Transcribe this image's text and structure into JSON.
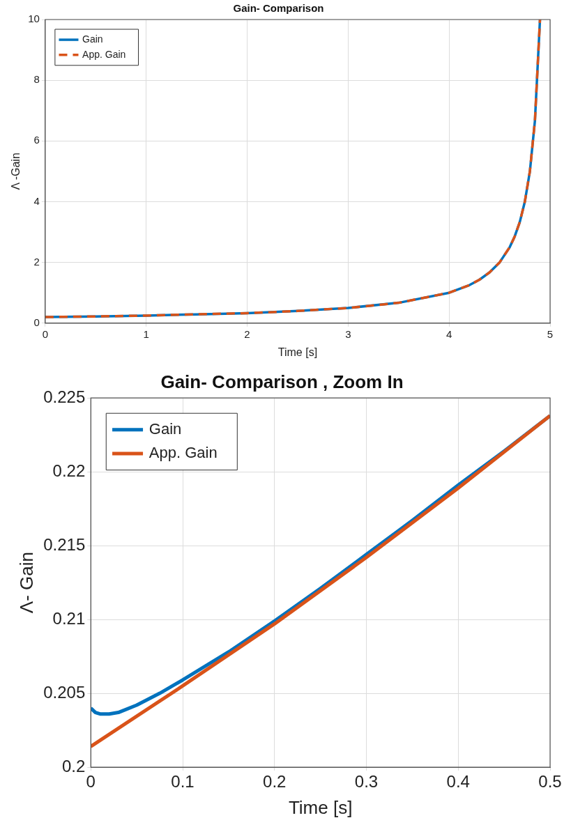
{
  "chart_data": [
    {
      "type": "line",
      "title": "Gain- Comparison",
      "xlabel": "Time [s]",
      "ylabel": "Λ -Gain",
      "xlim": [
        0,
        5
      ],
      "xticks": [
        0,
        1,
        2,
        3,
        4,
        5
      ],
      "ylim": [
        0,
        10
      ],
      "yticks": [
        0,
        2,
        4,
        6,
        8,
        10
      ],
      "grid": true,
      "legend": "top left",
      "series": [
        {
          "name": "Gain",
          "color": "#0072bd",
          "line_style": "solid",
          "x": [
            0,
            0.5,
            1,
            1.5,
            2,
            2.5,
            3,
            3.5,
            4,
            4.2,
            4.3,
            4.4,
            4.5,
            4.6,
            4.65,
            4.7,
            4.75,
            4.8,
            4.85,
            4.9
          ],
          "values": [
            0.2,
            0.22,
            0.25,
            0.29,
            0.33,
            0.4,
            0.5,
            0.67,
            1.0,
            1.25,
            1.43,
            1.67,
            2.0,
            2.5,
            2.86,
            3.33,
            4.0,
            5.0,
            6.67,
            10
          ]
        },
        {
          "name": "App. Gain",
          "color": "#d95319",
          "line_style": "dashed",
          "x": [
            0,
            0.5,
            1,
            1.5,
            2,
            2.5,
            3,
            3.5,
            4,
            4.2,
            4.3,
            4.4,
            4.5,
            4.6,
            4.65,
            4.7,
            4.75,
            4.8,
            4.85,
            4.9
          ],
          "values": [
            0.2,
            0.22,
            0.25,
            0.29,
            0.33,
            0.4,
            0.5,
            0.67,
            1.0,
            1.25,
            1.43,
            1.67,
            2.0,
            2.5,
            2.86,
            3.33,
            4.0,
            5.0,
            6.67,
            10
          ]
        }
      ]
    },
    {
      "type": "line",
      "title": "Gain- Comparison , Zoom In",
      "xlabel": "Time [s]",
      "ylabel": "Λ- Gain",
      "xlim": [
        0,
        0.5
      ],
      "xticks": [
        0,
        0.1,
        0.2,
        0.3,
        0.4,
        0.5
      ],
      "ylim": [
        0.2,
        0.225
      ],
      "yticks": [
        0.2,
        0.205,
        0.21,
        0.215,
        0.22,
        0.225
      ],
      "grid": true,
      "legend": "top left",
      "series": [
        {
          "name": "Gain",
          "color": "#0072bd",
          "line_style": "solid",
          "x": [
            0,
            0.005,
            0.01,
            0.02,
            0.03,
            0.05,
            0.075,
            0.1,
            0.15,
            0.2,
            0.25,
            0.3,
            0.35,
            0.4,
            0.45,
            0.5
          ],
          "values": [
            0.204,
            0.2037,
            0.2036,
            0.2036,
            0.2037,
            0.2042,
            0.205,
            0.2059,
            0.2078,
            0.2099,
            0.2121,
            0.2144,
            0.2167,
            0.2191,
            0.2214,
            0.2238
          ]
        },
        {
          "name": "App. Gain",
          "color": "#d95319",
          "line_style": "solid",
          "x": [
            0,
            0.1,
            0.2,
            0.3,
            0.4,
            0.5
          ],
          "values": [
            0.2014,
            0.2055,
            0.2097,
            0.2142,
            0.2189,
            0.2238
          ]
        }
      ]
    }
  ]
}
